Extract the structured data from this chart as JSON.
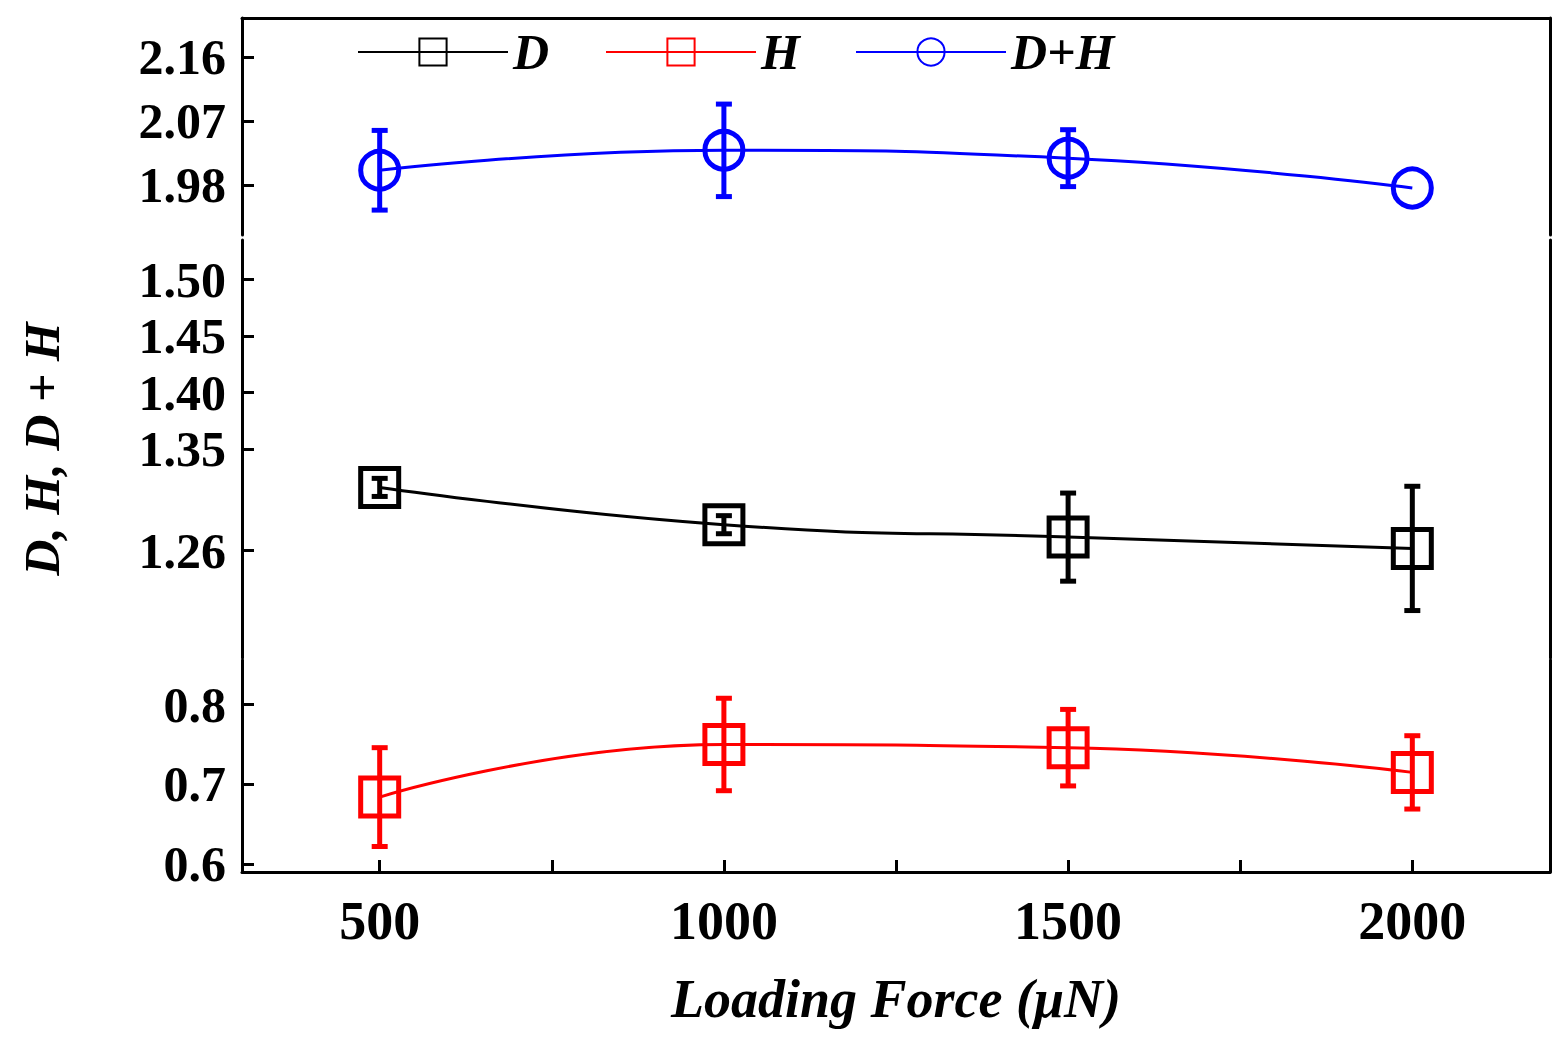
{
  "chart_data": [
    {
      "type": "line",
      "legend": "top",
      "tick_labels": "y",
      "xlim": [
        300,
        2200
      ],
      "ylim": [
        1.91,
        2.215
      ],
      "yticks": [
        1.98,
        2.07,
        2.16
      ],
      "series": [
        {
          "name": "D+H",
          "color": "#0000ff",
          "marker": "circle",
          "x": [
            500,
            1000,
            1500,
            2000
          ],
          "values": [
            2.001,
            2.029,
            2.018,
            1.976
          ],
          "errors": [
            0.056,
            0.065,
            0.04,
            null
          ]
        }
      ]
    },
    {
      "type": "line",
      "legend": "top",
      "tick_labels": "y",
      "xlim": [
        300,
        2200
      ],
      "ylim": [
        1.165,
        1.535
      ],
      "ylabel": "D, H, D + H",
      "yticks": [
        1.26,
        1.35,
        {
          "value": 1.4,
          "label": "1.40"
        },
        1.45,
        {
          "value": 1.5,
          "label": "1.50"
        }
      ],
      "series": [
        {
          "name": "D",
          "color": "#000000",
          "marker": "square",
          "x": [
            500,
            1000,
            1500,
            2000
          ],
          "values": [
            1.316,
            1.283,
            1.272,
            1.262
          ],
          "errors": [
            0.008,
            0.008,
            0.039,
            0.055
          ]
        }
      ]
    },
    {
      "type": "line",
      "legend": "top",
      "xlim": [
        300,
        2200
      ],
      "ylim": [
        0.59,
        0.856
      ],
      "xlabel": "Loading Force (μN)",
      "yticks": [
        0.6,
        0.7,
        0.8
      ],
      "xticks": [
        500,
        {
          "value": 750,
          "label": null
        },
        1000,
        {
          "value": 1250,
          "label": null
        },
        1500,
        {
          "value": 1750,
          "label": null
        },
        2000
      ],
      "series": [
        {
          "name": "H",
          "color": "#ff0000",
          "marker": "square",
          "x": [
            500,
            1000,
            1500,
            2000
          ],
          "values": [
            0.684,
            0.75,
            0.746,
            0.715
          ],
          "errors": [
            0.062,
            0.058,
            0.048,
            0.046
          ]
        }
      ]
    }
  ]
}
